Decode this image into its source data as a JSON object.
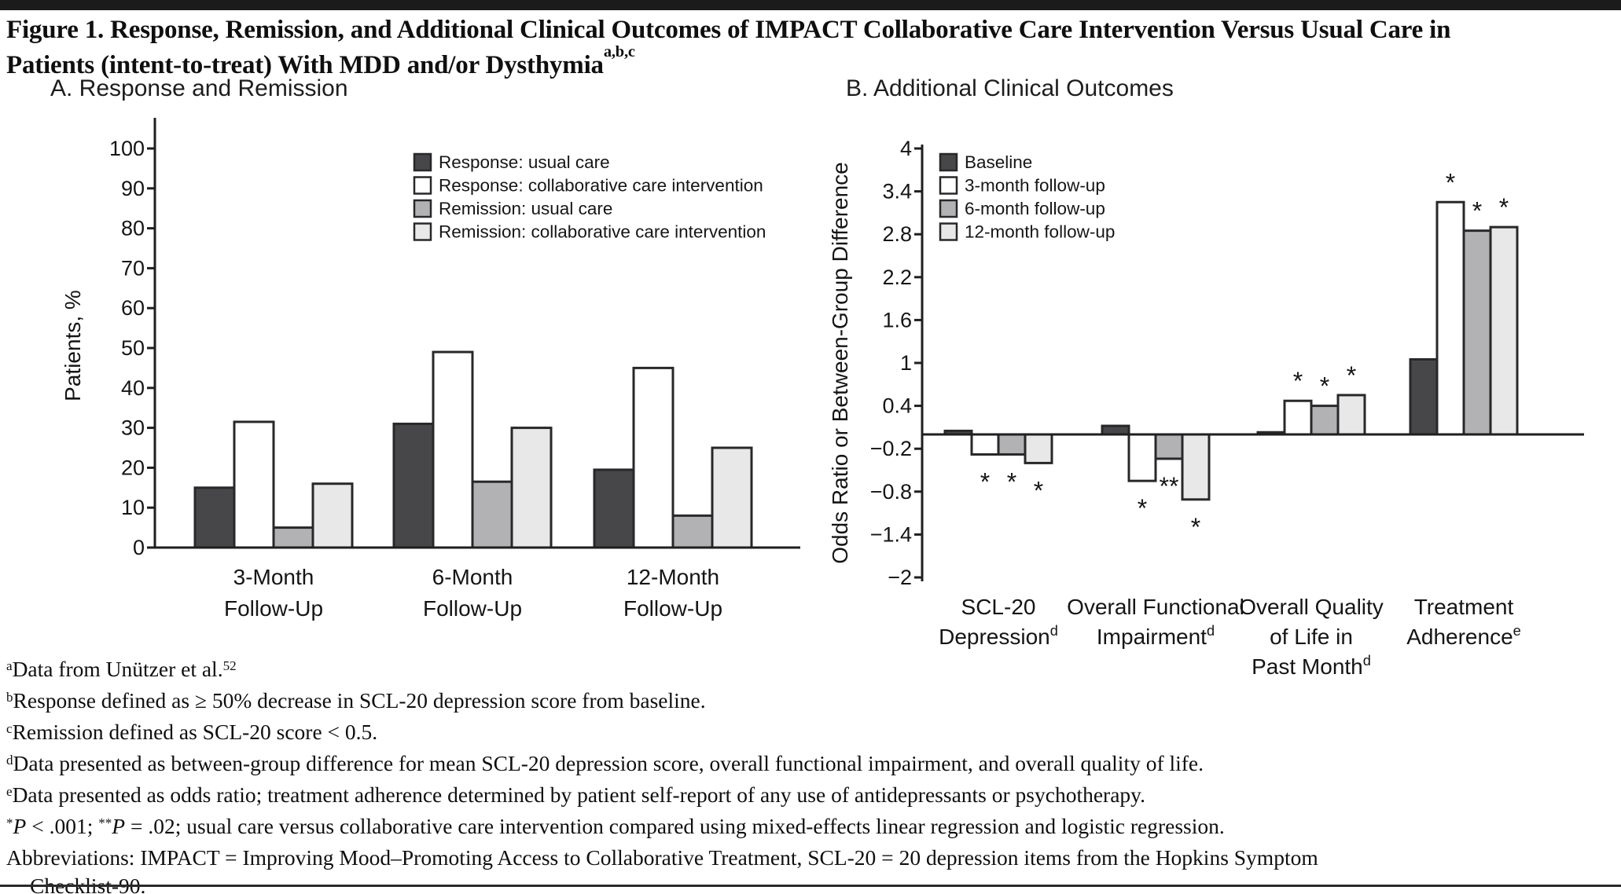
{
  "figure_title": {
    "line1": "Figure 1. Response, Remission, and Additional Clinical Outcomes of IMPACT Collaborative Care Intervention Versus Usual Care in",
    "line2": "Patients (intent-to-treat) With MDD and/or Dysthymia",
    "superscript": "a,b,c"
  },
  "colors": {
    "bar_border": "#28282a",
    "axis": "#1f1f1f",
    "top_rule": "#1b1b1b",
    "bottom_rule": "#2a2a2a",
    "dark_gray": "#47474a",
    "white": "#ffffff",
    "mid_gray": "#b2b2b4",
    "light_gray": "#e8e8e9"
  },
  "chart_data": [
    {
      "id": "response-remission",
      "type": "bar",
      "panel": "A",
      "title": "A. Response and Remission",
      "xlabel": "",
      "ylabel": "Patients, %",
      "ylim": [
        0,
        100
      ],
      "grid": false,
      "legend_position": "upper right inside",
      "yticks": [
        {
          "v": 0,
          "label": "0"
        },
        {
          "v": 10,
          "label": "10"
        },
        {
          "v": 20,
          "label": "20"
        },
        {
          "v": 30,
          "label": "30"
        },
        {
          "v": 40,
          "label": "40"
        },
        {
          "v": 50,
          "label": "50"
        },
        {
          "v": 60,
          "label": "60"
        },
        {
          "v": 70,
          "label": "70"
        },
        {
          "v": 80,
          "label": "80"
        },
        {
          "v": 90,
          "label": "90"
        },
        {
          "v": 100,
          "label": "100"
        }
      ],
      "categories": [
        [
          "3-Month",
          "Follow-Up"
        ],
        [
          "6-Month",
          "Follow-Up"
        ],
        [
          "12-Month",
          "Follow-Up"
        ]
      ],
      "series": [
        {
          "name": "Response: usual care",
          "color": "#47474a",
          "values": [
            15,
            31,
            19.5
          ]
        },
        {
          "name": "Response: collaborative care intervention",
          "color": "#ffffff",
          "values": [
            31.5,
            49,
            45
          ]
        },
        {
          "name": "Remission: usual care",
          "color": "#b2b2b4",
          "values": [
            5,
            16.5,
            8
          ]
        },
        {
          "name": "Remission: collaborative care intervention",
          "color": "#e8e8e9",
          "values": [
            16,
            30,
            25
          ]
        }
      ]
    },
    {
      "id": "additional-outcomes",
      "type": "bar",
      "panel": "B",
      "title": "B. Additional Clinical Outcomes",
      "xlabel": "",
      "ylabel": "Odds Ratio or Between-Group Difference",
      "ylim": [
        -2,
        4
      ],
      "grid": false,
      "legend_position": "upper left inside",
      "yticks": [
        {
          "v": 4,
          "label": "4"
        },
        {
          "v": 3.4,
          "label": "3.4"
        },
        {
          "v": 2.8,
          "label": "2.8"
        },
        {
          "v": 2.2,
          "label": "2.2"
        },
        {
          "v": 1.6,
          "label": "1.6"
        },
        {
          "v": 1,
          "label": "1"
        },
        {
          "v": 0.4,
          "label": "0.4"
        },
        {
          "v": -0.2,
          "label": "−0.2"
        },
        {
          "v": -0.8,
          "label": "−0.8"
        },
        {
          "v": -1.4,
          "label": "−1.4"
        },
        {
          "v": -2,
          "label": "−2"
        }
      ],
      "categories": [
        [
          "SCL-20",
          {
            "text": "Depression",
            "sup": "d"
          }
        ],
        [
          "Overall Functional",
          {
            "text": "Impairment",
            "sup": "d"
          }
        ],
        [
          "Overall Quality",
          "of Life in",
          {
            "text": "Past Month",
            "sup": "d"
          }
        ],
        [
          "Treatment",
          {
            "text": "Adherence",
            "sup": "e"
          }
        ]
      ],
      "series": [
        {
          "name": "Baseline",
          "color": "#47474a",
          "values": [
            0.05,
            0.12,
            0.03,
            1.05
          ],
          "sig": [
            "",
            "",
            "",
            ""
          ]
        },
        {
          "name": "3-month follow-up",
          "color": "#ffffff",
          "values": [
            -0.28,
            -0.65,
            0.47,
            3.25
          ],
          "sig": [
            "*",
            "*",
            "*",
            "*"
          ]
        },
        {
          "name": "6-month follow-up",
          "color": "#b2b2b4",
          "values": [
            -0.28,
            -0.34,
            0.4,
            2.85
          ],
          "sig": [
            "*",
            "**",
            "*",
            "*"
          ]
        },
        {
          "name": "12-month follow-up",
          "color": "#e8e8e9",
          "values": [
            -0.4,
            -0.91,
            0.55,
            2.9
          ],
          "sig": [
            "*",
            "*",
            "*",
            "*"
          ]
        }
      ]
    }
  ],
  "footnotes": [
    {
      "indent": false,
      "segments": [
        {
          "s": "a"
        },
        {
          "t": "Data from Unützer et al."
        },
        {
          "s": "52"
        }
      ]
    },
    {
      "indent": false,
      "segments": [
        {
          "s": "b"
        },
        {
          "t": "Response defined as ≥ 50% decrease in SCL-20 depression score from baseline."
        }
      ]
    },
    {
      "indent": false,
      "segments": [
        {
          "s": "c"
        },
        {
          "t": "Remission defined as SCL-20 score < 0.5."
        }
      ]
    },
    {
      "indent": false,
      "segments": [
        {
          "s": "d"
        },
        {
          "t": "Data presented as between-group difference for mean SCL-20 depression score, overall functional impairment, and overall quality of life."
        }
      ]
    },
    {
      "indent": false,
      "segments": [
        {
          "s": "e"
        },
        {
          "t": "Data presented as odds ratio; treatment adherence determined by patient self-report of any use of antidepressants or psychotherapy."
        }
      ]
    },
    {
      "indent": false,
      "segments": [
        {
          "s": "*"
        },
        {
          "i": "P"
        },
        {
          "t": " < .001; "
        },
        {
          "s": "**"
        },
        {
          "i": "P"
        },
        {
          "t": " = .02; usual care versus collaborative care intervention compared using mixed-effects linear regression and logistic regression."
        }
      ]
    },
    {
      "indent": false,
      "segments": [
        {
          "t": "Abbreviations: IMPACT = Improving Mood–Promoting Access to Collaborative Treatment, SCL-20 = 20 depression items from the Hopkins Symptom"
        }
      ]
    },
    {
      "indent": true,
      "segments": [
        {
          "t": "Checklist-90."
        }
      ]
    }
  ]
}
